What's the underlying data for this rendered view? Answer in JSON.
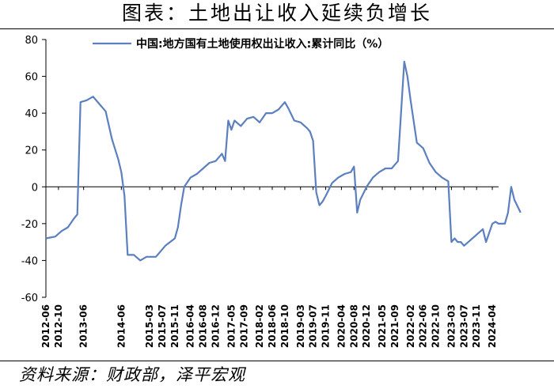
{
  "header": {
    "title": "图表：土地出让收入延续负增长"
  },
  "footer": {
    "source": "资料来源：财政部，泽平宏观"
  },
  "colors": {
    "series": "#5b7fbf",
    "axis": "#000000"
  },
  "chart_data": {
    "type": "line",
    "title": "图表：土地出让收入延续负增长",
    "ylim": [
      -60,
      80
    ],
    "yticks": [
      -60,
      -40,
      -20,
      0,
      20,
      40,
      60,
      80
    ],
    "xlim": [
      "2012-06",
      "2024-06"
    ],
    "xticks": [
      "2012-06",
      "2012-10",
      "2013-06",
      "2014-06",
      "2015-03",
      "2015-07",
      "2015-11",
      "2016-04",
      "2016-08",
      "2016-12",
      "2017-05",
      "2017-09",
      "2018-02",
      "2018-06",
      "2018-10",
      "2019-03",
      "2019-07",
      "2019-11",
      "2020-04",
      "2020-08",
      "2020-12",
      "2021-05",
      "2021-09",
      "2022-02",
      "2022-06",
      "2022-10",
      "2023-03",
      "2023-07",
      "2023-11",
      "2024-04"
    ],
    "legend": {
      "position": "top"
    },
    "grid": false,
    "series": [
      {
        "name": "中国:地方国有土地使用权出让收入:累计同比（%）",
        "points": [
          [
            "2012-06",
            -28
          ],
          [
            "2012-09",
            -27
          ],
          [
            "2012-11",
            -24
          ],
          [
            "2013-01",
            -22
          ],
          [
            "2013-03",
            -17
          ],
          [
            "2013-04",
            -15
          ],
          [
            "2013-05",
            46
          ],
          [
            "2013-07",
            47
          ],
          [
            "2013-09",
            49
          ],
          [
            "2013-11",
            45
          ],
          [
            "2014-01",
            41
          ],
          [
            "2014-03",
            26
          ],
          [
            "2014-05",
            15
          ],
          [
            "2014-06",
            8
          ],
          [
            "2014-07",
            -5
          ],
          [
            "2014-08",
            -37
          ],
          [
            "2014-10",
            -37
          ],
          [
            "2014-12",
            -40
          ],
          [
            "2015-02",
            -38
          ],
          [
            "2015-05",
            -38
          ],
          [
            "2015-08",
            -32
          ],
          [
            "2015-11",
            -28
          ],
          [
            "2015-12",
            -22
          ],
          [
            "2016-01",
            -10
          ],
          [
            "2016-02",
            0
          ],
          [
            "2016-04",
            5
          ],
          [
            "2016-06",
            7
          ],
          [
            "2016-08",
            10
          ],
          [
            "2016-10",
            13
          ],
          [
            "2016-12",
            14
          ],
          [
            "2017-02",
            18
          ],
          [
            "2017-03",
            14
          ],
          [
            "2017-04",
            36
          ],
          [
            "2017-05",
            31
          ],
          [
            "2017-06",
            36
          ],
          [
            "2017-08",
            33
          ],
          [
            "2017-10",
            37
          ],
          [
            "2017-12",
            38
          ],
          [
            "2018-02",
            35
          ],
          [
            "2018-04",
            40
          ],
          [
            "2018-06",
            40
          ],
          [
            "2018-08",
            42
          ],
          [
            "2018-10",
            46
          ],
          [
            "2018-11",
            43
          ],
          [
            "2019-01",
            36
          ],
          [
            "2019-03",
            35
          ],
          [
            "2019-05",
            32
          ],
          [
            "2019-06",
            30
          ],
          [
            "2019-07",
            25
          ],
          [
            "2019-08",
            -3
          ],
          [
            "2019-09",
            -10
          ],
          [
            "2019-10",
            -8
          ],
          [
            "2019-11",
            -5
          ],
          [
            "2020-01",
            2
          ],
          [
            "2020-03",
            5
          ],
          [
            "2020-05",
            7
          ],
          [
            "2020-07",
            8
          ],
          [
            "2020-08",
            11
          ],
          [
            "2020-09",
            -14
          ],
          [
            "2020-10",
            -7
          ],
          [
            "2020-12",
            0
          ],
          [
            "2021-02",
            5
          ],
          [
            "2021-04",
            8
          ],
          [
            "2021-06",
            10
          ],
          [
            "2021-08",
            10
          ],
          [
            "2021-10",
            14
          ],
          [
            "2021-12",
            68
          ],
          [
            "2022-01",
            60
          ],
          [
            "2022-02",
            47
          ],
          [
            "2022-04",
            24
          ],
          [
            "2022-06",
            21
          ],
          [
            "2022-08",
            13
          ],
          [
            "2022-10",
            8
          ],
          [
            "2022-12",
            5
          ],
          [
            "2023-02",
            3
          ],
          [
            "2023-03",
            -30
          ],
          [
            "2023-04",
            -28
          ],
          [
            "2023-05",
            -30
          ],
          [
            "2023-06",
            -30
          ],
          [
            "2023-07",
            -32
          ],
          [
            "2023-09",
            -29
          ],
          [
            "2023-11",
            -26
          ],
          [
            "2024-01",
            -23
          ],
          [
            "2024-02",
            -30
          ],
          [
            "2024-03",
            -25
          ],
          [
            "2024-04",
            -20
          ],
          [
            "2024-05",
            -19
          ],
          [
            "2024-06",
            -20
          ],
          [
            "2024-08",
            -20
          ],
          [
            "2024-09",
            -14
          ],
          [
            "2024-10",
            0
          ],
          [
            "2024-11",
            -7
          ],
          [
            "2025-01",
            -14
          ]
        ]
      }
    ]
  }
}
